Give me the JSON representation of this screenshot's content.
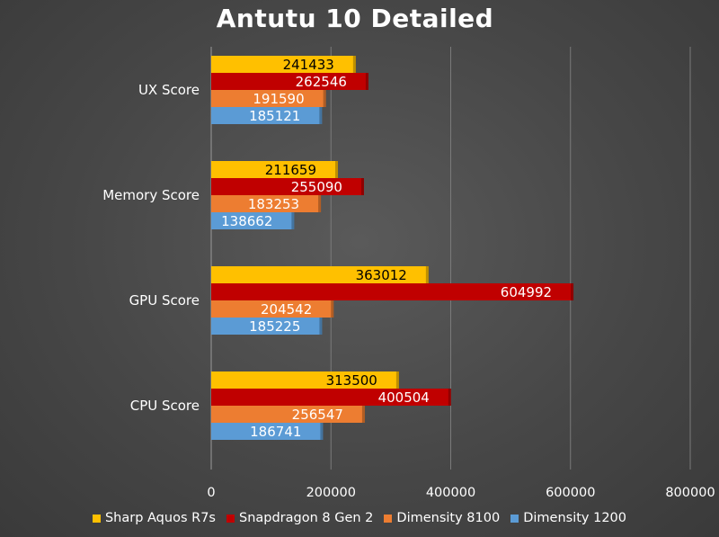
{
  "chart_data": {
    "type": "bar",
    "orientation": "horizontal",
    "title": "Antutu 10 Detailed",
    "categories": [
      "UX Score",
      "Memory Score",
      "GPU Score",
      "CPU Score"
    ],
    "series": [
      {
        "name": "Sharp Aquos R7s",
        "color": "#ffc000",
        "label_color": "#000000",
        "values": [
          241433,
          211659,
          363012,
          313500
        ]
      },
      {
        "name": "Snapdragon 8 Gen 2",
        "color": "#c00000",
        "label_color": "#ffffff",
        "values": [
          262546,
          255090,
          604992,
          400504
        ]
      },
      {
        "name": "Dimensity 8100",
        "color": "#ed7d31",
        "label_color": "#ffffff",
        "values": [
          191590,
          183253,
          204542,
          256547
        ]
      },
      {
        "name": "Dimensity 1200",
        "color": "#5b9bd5",
        "label_color": "#ffffff",
        "values": [
          185121,
          138662,
          185225,
          186741
        ]
      }
    ],
    "xlim": [
      0,
      800000
    ],
    "x_ticks": [
      "0",
      "200000",
      "400000",
      "600000",
      "800000"
    ],
    "grid": true,
    "legend_position": "bottom"
  }
}
